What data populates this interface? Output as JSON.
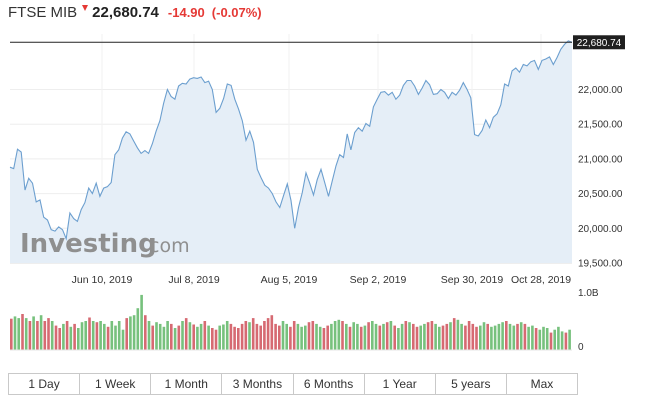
{
  "header": {
    "name": "FTSE MIB",
    "price": "22,680.74",
    "change": "-14.90",
    "change_pct": "(-0.07%)",
    "down_color": "#e53935"
  },
  "logo": {
    "brand": "Investing",
    "suffix": ".com"
  },
  "tabs": [
    "1 Day",
    "1 Week",
    "1 Month",
    "3 Months",
    "6 Months",
    "1 Year",
    "5 years",
    "Max"
  ],
  "colors": {
    "line": "#6c9fcf",
    "area": "#e5eef7",
    "vol_up": "#77c17d",
    "vol_down": "#d66a72"
  },
  "chart_data": {
    "type": "area",
    "x_ticks": [
      "Jun 10, 2019",
      "Jul 8, 2019",
      "Aug 5, 2019",
      "Sep 2, 2019",
      "Sep 30, 2019",
      "Oct 28, 2019"
    ],
    "y_ticks": [
      "19,500.00",
      "20,000.00",
      "20,500.00",
      "21,000.00",
      "21,500.00",
      "22,000.00"
    ],
    "y_tick_values": [
      19500,
      20000,
      20500,
      21000,
      21500,
      22000
    ],
    "ylim": [
      19500,
      22800
    ],
    "last_value": 22680.74,
    "last_label": "22,680.74",
    "values": [
      20880,
      20860,
      21140,
      21100,
      20550,
      20720,
      20650,
      20380,
      20410,
      20160,
      20120,
      19980,
      19960,
      20020,
      19980,
      19850,
      20220,
      20140,
      20100,
      20270,
      20370,
      20580,
      20500,
      20650,
      20460,
      20580,
      20600,
      20660,
      21060,
      21130,
      21300,
      21390,
      21360,
      21260,
      21160,
      21080,
      21120,
      21080,
      21220,
      21400,
      21550,
      21800,
      22000,
      21900,
      21860,
      22050,
      22090,
      22080,
      22150,
      22170,
      22160,
      22180,
      22100,
      22120,
      22000,
      21670,
      21730,
      21870,
      22080,
      22060,
      21860,
      21720,
      21550,
      21270,
      21400,
      21240,
      20850,
      20730,
      20620,
      20580,
      20500,
      20380,
      20300,
      20470,
      20640,
      20400,
      20000,
      20300,
      20510,
      20800,
      20650,
      20480,
      20700,
      20850,
      20660,
      20460,
      20680,
      20900,
      21060,
      21020,
      21360,
      21130,
      21380,
      21450,
      21400,
      21510,
      21470,
      21750,
      21860,
      21960,
      21970,
      21920,
      21960,
      21860,
      21920,
      22060,
      22130,
      22130,
      22050,
      21930,
      22020,
      22130,
      22070,
      21930,
      21940,
      22000,
      21960,
      21870,
      21960,
      21920,
      21990,
      22100,
      22000,
      21880,
      21350,
      21330,
      21410,
      21560,
      21450,
      21600,
      21650,
      21780,
      22080,
      22050,
      22270,
      22310,
      22250,
      22360,
      22340,
      22400,
      22420,
      22290,
      22420,
      22440,
      22470,
      22360,
      22460,
      22580,
      22650,
      22700,
      22680.74
    ],
    "volume": {
      "ylim_label": "1.0B",
      "zero_label": "0",
      "heights": [
        0.54,
        0.58,
        0.55,
        0.62,
        0.55,
        0.5,
        0.58,
        0.5,
        0.6,
        0.5,
        0.55,
        0.5,
        0.42,
        0.38,
        0.45,
        0.5,
        0.4,
        0.45,
        0.38,
        0.48,
        0.5,
        0.56,
        0.5,
        0.48,
        0.5,
        0.45,
        0.4,
        0.5,
        0.42,
        0.5,
        0.35,
        0.55,
        0.58,
        0.6,
        0.72,
        0.95,
        0.6,
        0.5,
        0.42,
        0.48,
        0.45,
        0.4,
        0.5,
        0.45,
        0.38,
        0.42,
        0.5,
        0.55,
        0.48,
        0.44,
        0.4,
        0.45,
        0.5,
        0.42,
        0.38,
        0.35,
        0.42,
        0.44,
        0.5,
        0.45,
        0.4,
        0.38,
        0.45,
        0.5,
        0.48,
        0.55,
        0.45,
        0.42,
        0.5,
        0.55,
        0.6,
        0.45,
        0.42,
        0.5,
        0.45,
        0.4,
        0.5,
        0.45,
        0.4,
        0.42,
        0.48,
        0.5,
        0.45,
        0.4,
        0.38,
        0.42,
        0.45,
        0.5,
        0.52,
        0.5,
        0.45,
        0.4,
        0.48,
        0.45,
        0.4,
        0.42,
        0.48,
        0.5,
        0.45,
        0.42,
        0.45,
        0.48,
        0.5,
        0.42,
        0.38,
        0.45,
        0.5,
        0.48,
        0.45,
        0.4,
        0.42,
        0.45,
        0.48,
        0.5,
        0.45,
        0.4,
        0.42,
        0.45,
        0.48,
        0.55,
        0.52,
        0.45,
        0.42,
        0.5,
        0.45,
        0.4,
        0.42,
        0.48,
        0.45,
        0.4,
        0.42,
        0.45,
        0.48,
        0.5,
        0.45,
        0.42,
        0.45,
        0.48,
        0.45,
        0.4,
        0.42,
        0.38,
        0.35,
        0.4,
        0.38,
        0.3,
        0.35,
        0.4,
        0.32,
        0.3,
        0.35
      ],
      "down": [
        1,
        0,
        0,
        1,
        0,
        1,
        0,
        1,
        0,
        1,
        1,
        0,
        1,
        1,
        0,
        1,
        0,
        1,
        0,
        0,
        0,
        1,
        0,
        1,
        0,
        0,
        1,
        0,
        0,
        0,
        0,
        1,
        0,
        0,
        0,
        0,
        1,
        0,
        1,
        0,
        0,
        0,
        0,
        1,
        0,
        1,
        0,
        1,
        0,
        1,
        0,
        0,
        1,
        0,
        1,
        1,
        0,
        0,
        0,
        1,
        1,
        1,
        1,
        1,
        0,
        1,
        1,
        1,
        1,
        1,
        1,
        1,
        1,
        0,
        0,
        1,
        1,
        0,
        0,
        0,
        1,
        1,
        0,
        0,
        1,
        1,
        0,
        0,
        0,
        1,
        0,
        1,
        0,
        0,
        1,
        0,
        1,
        0,
        0,
        1,
        0,
        1,
        0,
        1,
        0,
        0,
        1,
        0,
        1,
        1,
        0,
        0,
        1,
        1,
        0,
        0,
        1,
        1,
        0,
        1,
        0,
        0,
        1,
        1,
        1,
        1,
        0,
        0,
        1,
        0,
        0,
        0,
        0,
        1,
        0,
        0,
        1,
        0,
        1,
        0,
        0,
        1,
        0,
        0,
        0,
        1,
        0,
        0,
        0,
        1,
        0
      ]
    }
  }
}
